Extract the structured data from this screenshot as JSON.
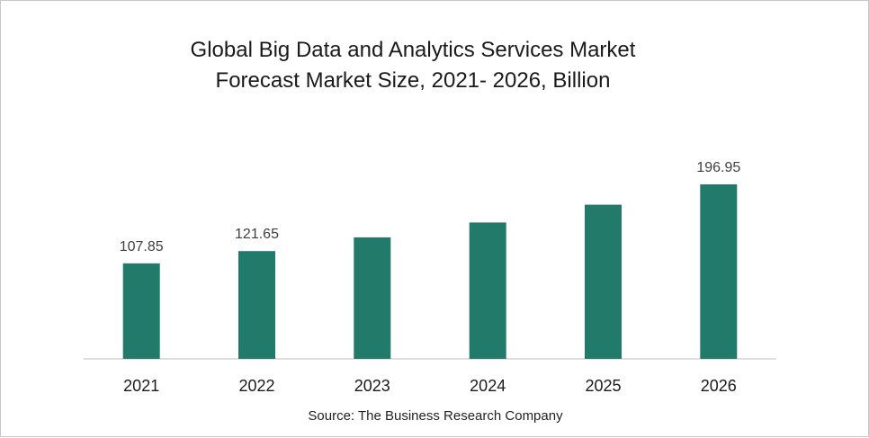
{
  "chart_data": {
    "type": "bar",
    "title_line1": "Global Big Data and Analytics Services Market",
    "title_line2": "Forecast Market Size, 2021- 2026, Billion",
    "categories": [
      "2021",
      "2022",
      "2023",
      "2024",
      "2025",
      "2026"
    ],
    "values": [
      107.85,
      121.65,
      137.2,
      153.9,
      174.0,
      196.95
    ],
    "data_labels": [
      "107.85",
      "121.65",
      "",
      "",
      "",
      "196.95"
    ],
    "xlabel": "",
    "ylabel": "",
    "ylim": [
      0,
      200
    ],
    "grid": false,
    "legend": "none",
    "bar_color": "#217a6a"
  },
  "source": "Source: The Business Research Company"
}
